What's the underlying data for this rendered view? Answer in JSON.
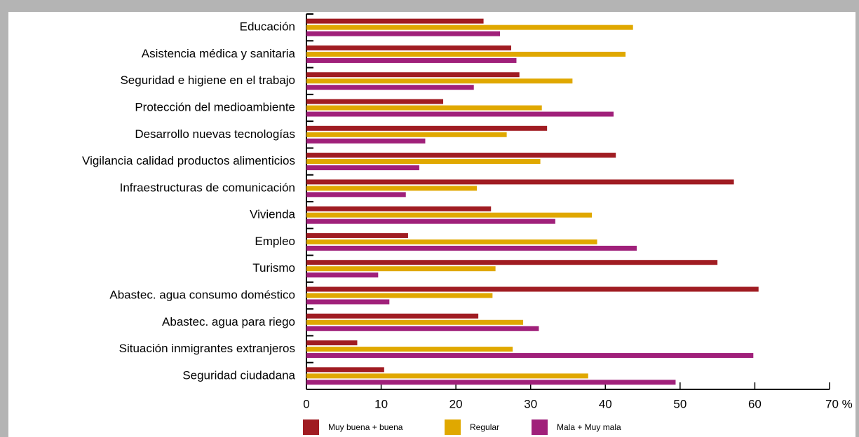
{
  "chart_data": {
    "type": "bar",
    "orientation": "horizontal",
    "categories": [
      "Educación",
      "Asistencia médica y sanitaria",
      "Seguridad e higiene en el trabajo",
      "Protección del medioambiente",
      "Desarrollo nuevas tecnologías",
      "Vigilancia calidad productos alimenticios",
      "Infraestructuras de comunicación",
      "Vivienda",
      "Empleo",
      "Turismo",
      "Abastec. agua consumo doméstico",
      "Abastec. agua para riego",
      "Situación inmigrantes extranjeros",
      "Seguridad ciudadana"
    ],
    "series": [
      {
        "name": "Muy buena + buena",
        "color": "#a01c22",
        "values": [
          23.7,
          27.4,
          28.5,
          18.3,
          32.2,
          41.4,
          57.2,
          24.7,
          13.6,
          55.0,
          60.5,
          23.0,
          6.8,
          10.4
        ]
      },
      {
        "name": "Regular",
        "color": "#e0a800",
        "values": [
          43.7,
          42.7,
          35.6,
          31.5,
          26.8,
          31.3,
          22.8,
          38.2,
          38.9,
          25.3,
          24.9,
          29.0,
          27.6,
          37.7
        ]
      },
      {
        "name": "Mala + Muy mala",
        "color": "#a0207a",
        "values": [
          25.9,
          28.1,
          22.4,
          41.1,
          15.9,
          15.1,
          13.3,
          33.3,
          44.2,
          9.6,
          11.1,
          31.1,
          59.8,
          49.4
        ]
      }
    ],
    "xlim": [
      0,
      70
    ],
    "xticks": [
      0,
      10,
      20,
      30,
      40,
      50,
      60,
      {
        "value": 70,
        "label": "70 %"
      }
    ],
    "grid": false,
    "legend": "bottom"
  }
}
